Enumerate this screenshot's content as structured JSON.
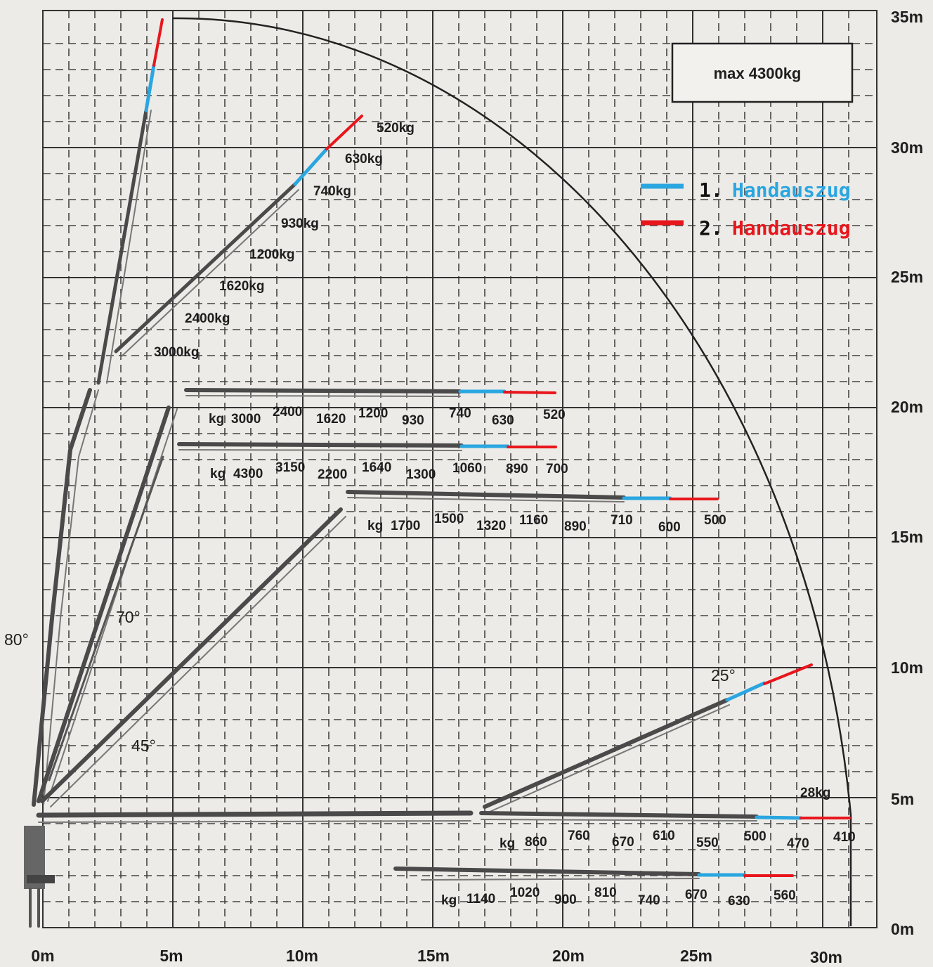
{
  "max_capacity": "max 4300kg",
  "legend": [
    {
      "num": "1.",
      "label": "Handauszug",
      "color": "#2aa6e0"
    },
    {
      "num": "2.",
      "label": "Handauszug",
      "color": "#e8161c"
    }
  ],
  "y_ticks": [
    "35m",
    "30m",
    "25m",
    "20m",
    "15m",
    "10m",
    "5m",
    "0m"
  ],
  "x_ticks": [
    "0m",
    "5m",
    "10m",
    "15m",
    "20m",
    "25m",
    "30m"
  ],
  "angles": [
    "80°",
    "70°",
    "45°",
    "25°"
  ],
  "colors": {
    "ext1": "#2aa6e0",
    "ext2": "#e8161c",
    "boom": "#4a4a4a",
    "paper": "#ecebe7"
  },
  "load_charts": [
    {
      "name": "80-degree",
      "loads": [
        "3000kg",
        "2400kg",
        "1620kg",
        "1200kg",
        "930kg",
        "740kg",
        "630kg",
        "520kg"
      ]
    },
    {
      "name": "boom-20m",
      "prefix": "kg",
      "loads": [
        "3000",
        "2400",
        "1620",
        "1200",
        "930",
        "740",
        "630",
        "520"
      ]
    },
    {
      "name": "boom-18m",
      "prefix": "kg",
      "loads": [
        "4300",
        "3150",
        "2200",
        "1640",
        "1300",
        "1060",
        "890",
        "700"
      ]
    },
    {
      "name": "boom-16m",
      "prefix": "kg",
      "loads": [
        "1700",
        "1500",
        "1320",
        "1160",
        "890",
        "710",
        "600",
        "500"
      ]
    },
    {
      "name": "boom-4m",
      "prefix": "kg",
      "loads": [
        "860",
        "760",
        "670",
        "610",
        "550",
        "500",
        "470",
        "410"
      ]
    },
    {
      "name": "boom-2m",
      "prefix": "kg",
      "loads": [
        "1140",
        "1020",
        "900",
        "810",
        "740",
        "670",
        "630",
        "560"
      ]
    }
  ],
  "extra_load": "28kg"
}
